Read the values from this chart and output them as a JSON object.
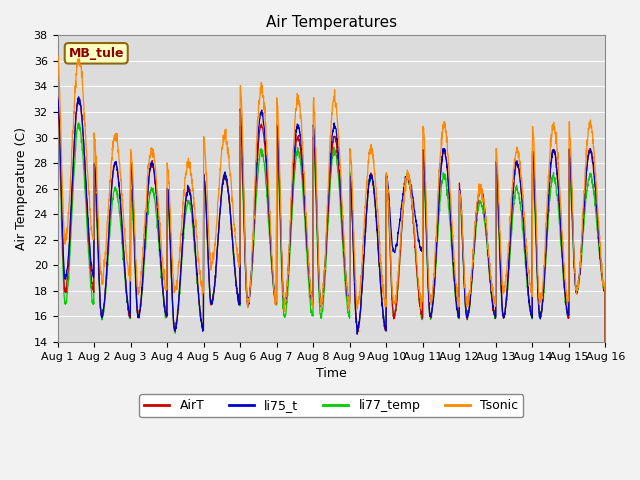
{
  "title": "Air Temperatures",
  "xlabel": "Time",
  "ylabel": "Air Temperature (C)",
  "ylim": [
    14,
    38
  ],
  "yticks": [
    14,
    16,
    18,
    20,
    22,
    24,
    26,
    28,
    30,
    32,
    34,
    36,
    38
  ],
  "annotation": "MB_tule",
  "annotation_color": "#8B0000",
  "annotation_bg": "#FFFFC0",
  "colors": {
    "AirT": "#CC0000",
    "li75_t": "#0000CC",
    "li77_temp": "#00CC00",
    "Tsonic": "#FF8800"
  },
  "background_color": "#DCDCDC",
  "plot_bg": "#DCDCDC",
  "n_days": 15,
  "points_per_day": 144,
  "day_maxes_AirT": [
    33,
    28,
    28,
    26,
    27,
    31,
    30,
    30,
    27,
    27,
    29,
    26,
    28,
    29,
    29
  ],
  "day_mins_AirT": [
    18,
    16,
    16,
    15,
    17,
    17,
    17,
    17,
    15,
    16,
    16,
    16,
    16,
    16,
    18
  ],
  "day_maxes_li75": [
    33,
    28,
    28,
    26,
    27,
    32,
    31,
    31,
    27,
    27,
    29,
    26,
    28,
    29,
    29
  ],
  "day_mins_li75": [
    19,
    16,
    16,
    15,
    17,
    17,
    17,
    17,
    15,
    21,
    16,
    16,
    16,
    16,
    18
  ],
  "day_maxes_li77": [
    31,
    26,
    26,
    25,
    27,
    29,
    29,
    29,
    27,
    27,
    27,
    25,
    26,
    27,
    27
  ],
  "day_mins_li77": [
    17,
    16,
    16,
    15,
    17,
    17,
    16,
    16,
    15,
    16,
    16,
    16,
    16,
    16,
    18
  ],
  "day_maxes_Tsonic": [
    36,
    30,
    29,
    28,
    30,
    34,
    33,
    33,
    29,
    27,
    31,
    26,
    29,
    31,
    31
  ],
  "day_mins_Tsonic": [
    22,
    19,
    18,
    18,
    20,
    17,
    17,
    17,
    17,
    17,
    17,
    17,
    18,
    17,
    18
  ],
  "peak_time": 0.58,
  "trough_time": 0.21
}
